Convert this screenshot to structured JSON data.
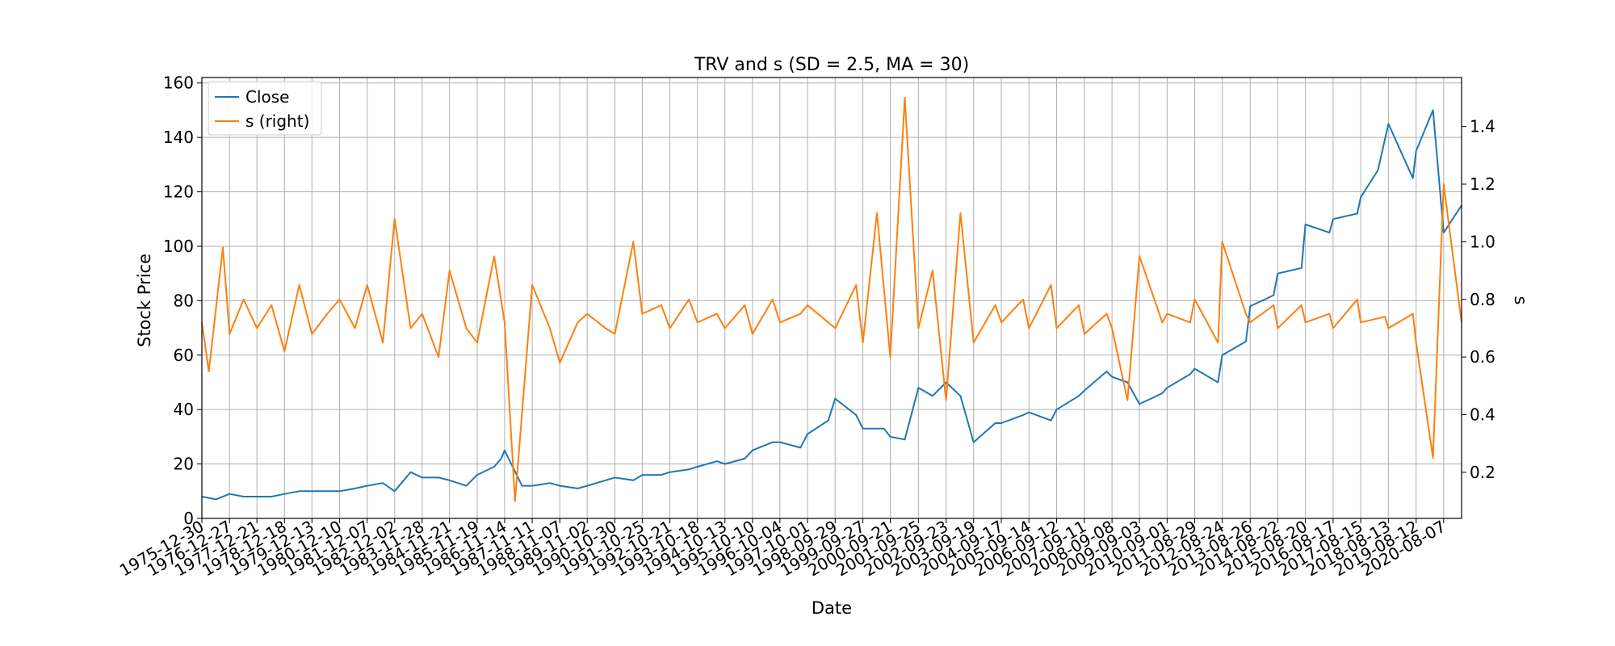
{
  "chart_data": {
    "type": "line",
    "title": "TRV and s (SD = 2.5, MA = 30)",
    "xlabel": "Date",
    "ylabel": "Stock Price",
    "y2label": "s",
    "ylim": [
      0,
      162
    ],
    "y2lim": [
      0.04,
      1.57
    ],
    "y_ticks": [
      0,
      20,
      40,
      60,
      80,
      100,
      120,
      140,
      160
    ],
    "y2_ticks": [
      0.2,
      0.4,
      0.6,
      0.8,
      1.0,
      1.2,
      1.4
    ],
    "grid": true,
    "legend_position": "top-left",
    "x_ticks": [
      "1975-12-30",
      "1976-12-27",
      "1977-12-21",
      "1978-12-18",
      "1979-12-13",
      "1980-12-10",
      "1981-12-07",
      "1982-12-02",
      "1983-11-28",
      "1984-11-21",
      "1985-11-19",
      "1986-11-14",
      "1987-11-11",
      "1988-11-07",
      "1989-11-02",
      "1990-10-30",
      "1991-10-25",
      "1992-10-21",
      "1993-10-18",
      "1994-10-13",
      "1995-10-10",
      "1996-10-04",
      "1997-10-01",
      "1998-09-29",
      "1999-09-27",
      "2000-09-21",
      "2001-09-25",
      "2002-09-23",
      "2003-09-19",
      "2004-09-17",
      "2005-09-14",
      "2006-09-12",
      "2007-09-11",
      "2008-09-08",
      "2009-09-03",
      "2010-09-01",
      "2011-08-29",
      "2012-08-24",
      "2013-08-26",
      "2014-08-22",
      "2015-08-20",
      "2016-08-17",
      "2017-08-15",
      "2018-08-13",
      "2019-08-12",
      "2020-08-07"
    ],
    "series": [
      {
        "name": "Close",
        "axis": "left",
        "color": "#1f77b4",
        "x": [
          "1975-12-30",
          "1976-06-30",
          "1976-12-27",
          "1977-06-30",
          "1977-12-21",
          "1978-06-30",
          "1978-12-18",
          "1979-06-30",
          "1979-12-13",
          "1980-06-30",
          "1980-12-10",
          "1981-06-30",
          "1981-12-07",
          "1982-06-30",
          "1982-12-02",
          "1983-06-30",
          "1983-11-28",
          "1984-06-30",
          "1984-11-21",
          "1985-06-30",
          "1985-11-19",
          "1986-06-30",
          "1986-09-30",
          "1986-11-14",
          "1987-06-30",
          "1987-11-11",
          "1988-06-30",
          "1988-11-07",
          "1989-06-30",
          "1989-11-02",
          "1990-06-30",
          "1990-10-30",
          "1991-06-30",
          "1991-10-25",
          "1992-06-30",
          "1992-10-21",
          "1993-06-30",
          "1993-10-18",
          "1994-06-30",
          "1994-10-13",
          "1995-06-30",
          "1995-10-10",
          "1996-06-30",
          "1996-10-04",
          "1997-06-30",
          "1997-10-01",
          "1998-06-30",
          "1998-09-29",
          "1999-06-30",
          "1999-09-27",
          "2000-06-30",
          "2000-09-21",
          "2001-03-30",
          "2001-09-25",
          "2002-03-30",
          "2002-09-23",
          "2003-03-30",
          "2003-09-19",
          "2004-06-30",
          "2004-09-17",
          "2005-06-30",
          "2005-09-14",
          "2006-06-30",
          "2006-09-12",
          "2007-06-30",
          "2007-09-11",
          "2008-06-30",
          "2008-09-08",
          "2009-03-30",
          "2009-09-03",
          "2010-06-30",
          "2010-09-01",
          "2011-06-30",
          "2011-08-29",
          "2012-06-30",
          "2012-08-24",
          "2013-06-30",
          "2013-08-26",
          "2014-06-30",
          "2014-08-22",
          "2015-06-30",
          "2015-08-20",
          "2016-06-30",
          "2016-08-17",
          "2017-06-30",
          "2017-08-15",
          "2018-03-30",
          "2018-08-13",
          "2019-06-30",
          "2019-08-12",
          "2020-03-20",
          "2020-08-07",
          "2021-03-30"
        ],
        "y": [
          8,
          7,
          9,
          8,
          8,
          8,
          9,
          10,
          10,
          10,
          10,
          11,
          12,
          13,
          10,
          17,
          15,
          15,
          14,
          12,
          16,
          19,
          22,
          25,
          12,
          12,
          13,
          12,
          11,
          12,
          14,
          15,
          14,
          16,
          16,
          17,
          18,
          19,
          21,
          20,
          22,
          25,
          28,
          28,
          26,
          31,
          36,
          44,
          38,
          33,
          33,
          30,
          29,
          48,
          45,
          50,
          45,
          28,
          35,
          35,
          38,
          39,
          36,
          40,
          45,
          47,
          54,
          52,
          50,
          42,
          46,
          48,
          53,
          55,
          50,
          60,
          65,
          78,
          82,
          90,
          92,
          108,
          105,
          110,
          112,
          118,
          128,
          145,
          125,
          135,
          150,
          105,
          115
        ]
      },
      {
        "name": "s (right)",
        "axis": "right",
        "color": "#ff7f0e",
        "x": [
          "1975-12-30",
          "1976-03-30",
          "1976-09-30",
          "1976-12-27",
          "1977-06-30",
          "1977-12-21",
          "1978-06-30",
          "1978-12-18",
          "1979-06-30",
          "1979-12-13",
          "1980-06-30",
          "1980-12-10",
          "1981-06-30",
          "1981-12-07",
          "1982-06-30",
          "1982-12-02",
          "1983-06-30",
          "1983-11-28",
          "1984-06-30",
          "1984-11-21",
          "1985-06-30",
          "1985-11-19",
          "1986-06-30",
          "1986-11-14",
          "1987-03-30",
          "1987-11-11",
          "1988-06-30",
          "1988-11-07",
          "1989-06-30",
          "1989-11-02",
          "1990-06-30",
          "1990-10-30",
          "1991-06-30",
          "1991-10-25",
          "1992-06-30",
          "1992-10-21",
          "1993-06-30",
          "1993-10-18",
          "1994-06-30",
          "1994-10-13",
          "1995-06-30",
          "1995-10-10",
          "1996-06-30",
          "1996-10-04",
          "1997-06-30",
          "1997-10-01",
          "1998-06-30",
          "1998-09-29",
          "1999-06-30",
          "1999-09-27",
          "2000-03-30",
          "2000-09-21",
          "2001-03-30",
          "2001-09-25",
          "2002-03-30",
          "2002-09-23",
          "2003-03-30",
          "2003-09-19",
          "2004-06-30",
          "2004-09-17",
          "2005-06-30",
          "2005-09-14",
          "2006-06-30",
          "2006-09-12",
          "2007-06-30",
          "2007-09-11",
          "2008-06-30",
          "2008-09-08",
          "2009-03-30",
          "2009-09-03",
          "2010-06-30",
          "2010-09-01",
          "2011-06-30",
          "2011-08-29",
          "2012-06-30",
          "2012-08-24",
          "2013-06-30",
          "2013-08-26",
          "2014-06-30",
          "2014-08-22",
          "2015-06-30",
          "2015-08-20",
          "2016-06-30",
          "2016-08-17",
          "2017-06-30",
          "2017-08-15",
          "2018-06-30",
          "2018-08-13",
          "2019-06-30",
          "2019-08-12",
          "2020-03-20",
          "2020-08-07",
          "2021-03-30"
        ],
        "y": [
          0.72,
          0.55,
          0.98,
          0.68,
          0.8,
          0.7,
          0.78,
          0.62,
          0.85,
          0.68,
          0.75,
          0.8,
          0.7,
          0.85,
          0.65,
          1.08,
          0.7,
          0.75,
          0.6,
          0.9,
          0.7,
          0.65,
          0.95,
          0.72,
          0.1,
          0.85,
          0.7,
          0.58,
          0.72,
          0.75,
          0.7,
          0.68,
          1.0,
          0.75,
          0.78,
          0.7,
          0.8,
          0.72,
          0.75,
          0.7,
          0.78,
          0.68,
          0.8,
          0.72,
          0.75,
          0.78,
          0.72,
          0.7,
          0.85,
          0.65,
          1.1,
          0.6,
          1.5,
          0.7,
          0.9,
          0.45,
          1.1,
          0.65,
          0.78,
          0.72,
          0.8,
          0.7,
          0.85,
          0.7,
          0.78,
          0.68,
          0.75,
          0.7,
          0.45,
          0.95,
          0.72,
          0.75,
          0.72,
          0.8,
          0.65,
          1.0,
          0.75,
          0.72,
          0.78,
          0.7,
          0.78,
          0.72,
          0.75,
          0.7,
          0.8,
          0.72,
          0.74,
          0.7,
          0.75,
          0.65,
          0.25,
          1.2,
          0.72
        ]
      }
    ]
  }
}
